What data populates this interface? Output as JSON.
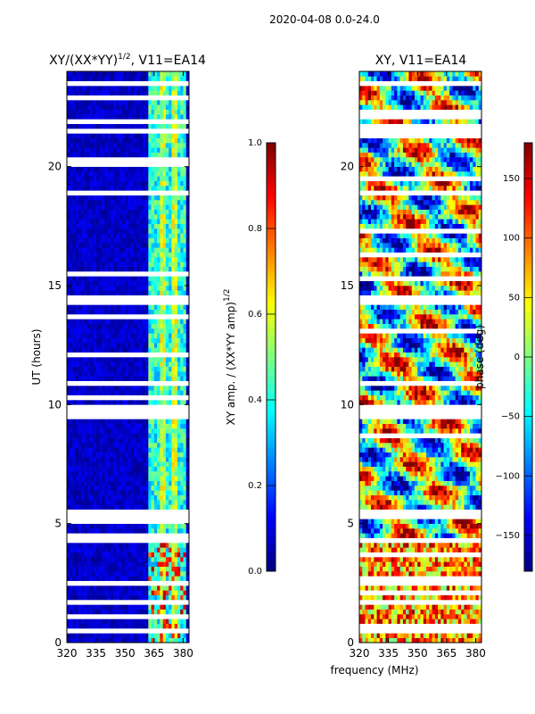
{
  "figure": {
    "suptitle": "2020-04-08 0.0-24.0",
    "shared_xlabel": "frequency (MHz)"
  },
  "colors": {
    "jet": [
      "#00007f",
      "#0000ff",
      "#007fff",
      "#00ffff",
      "#7fff7f",
      "#ffff00",
      "#ff7f00",
      "#ff0000",
      "#7f0000"
    ],
    "flag": "#ffffff"
  },
  "chart_data": [
    {
      "type": "heatmap",
      "id": "amp",
      "title": "XY/(XX*YY)",
      "title_sup": "1/2",
      "title_suffix": ", V11=EA14",
      "xlabel": "",
      "ylabel": "UT (hours)",
      "xlim": [
        320,
        383
      ],
      "ylim": [
        0,
        24
      ],
      "xticks": [
        320,
        335,
        350,
        365,
        380
      ],
      "yticks": [
        0,
        5,
        10,
        15,
        20
      ],
      "colorbar": {
        "label": "XY amp. / (XX*YY amp)",
        "label_sup": "1/2",
        "range": [
          0.0,
          1.0
        ],
        "ticks": [
          "0.0",
          "0.2",
          "0.4",
          "0.6",
          "0.8",
          "1.0"
        ]
      },
      "bright_band_mhz": [
        362,
        381
      ],
      "flagged_hours": [
        [
          0.4,
          0.6
        ],
        [
          1.6,
          1.7
        ],
        [
          2.4,
          2.6
        ],
        [
          4.2,
          4.3
        ],
        [
          5.3,
          5.6
        ],
        [
          9.4,
          9.9
        ],
        [
          13.6,
          13.7
        ],
        [
          14.3,
          14.6
        ],
        [
          18.8,
          19.0
        ],
        [
          22.9,
          23.0
        ],
        [
          23.5,
          23.7
        ]
      ]
    },
    {
      "type": "heatmap",
      "id": "phase",
      "title": "XY, V11=EA14",
      "xlabel": "",
      "ylabel": "",
      "xlim": [
        320,
        383
      ],
      "ylim": [
        0,
        24
      ],
      "xticks": [
        320,
        335,
        350,
        365,
        380
      ],
      "yticks": [
        0,
        5,
        10,
        15,
        20
      ],
      "colorbar": {
        "label": "phase (deg)",
        "range": [
          -180,
          180
        ],
        "ticks": [
          "−150",
          "−100",
          "−50",
          "0",
          "50",
          "100",
          "150"
        ]
      },
      "flagged_hours": [
        [
          0.4,
          0.6
        ],
        [
          1.6,
          1.7
        ],
        [
          4.2,
          4.3
        ],
        [
          5.3,
          5.6
        ],
        [
          9.4,
          9.9
        ],
        [
          14.3,
          14.6
        ],
        [
          18.8,
          19.0
        ],
        [
          23.5,
          23.7
        ]
      ]
    }
  ]
}
